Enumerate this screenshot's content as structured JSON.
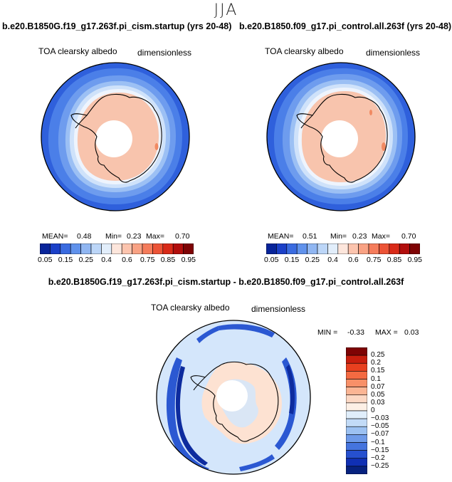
{
  "season": "JJA",
  "panels": [
    {
      "title": "b.e20.B1850G.f19_g17.263f.pi_cism.startup (yrs 20-48)",
      "variable": "TOA clearsky albedo",
      "units": "dimensionless",
      "stats": {
        "mean_label": "MEAN=",
        "mean": "0.48",
        "min_label": "Min=",
        "min": "0.23",
        "max_label": "Max=",
        "max": "0.70"
      }
    },
    {
      "title": "b.e20.B1850.f09_g17.pi_control.all.263f (yrs 20-48)",
      "variable": "TOA clearsky albedo",
      "units": "dimensionless",
      "stats": {
        "mean_label": "MEAN=",
        "mean": "0.51",
        "min_label": "Min=",
        "min": "0.23",
        "max_label": "Max=",
        "max": "0.70"
      }
    }
  ],
  "colorbar": {
    "colors": [
      "#08249a",
      "#1b40c8",
      "#3a6be0",
      "#6092ec",
      "#90b6f2",
      "#bcd6f8",
      "#e2eefb",
      "#fde6dc",
      "#fcc4ae",
      "#f9a284",
      "#f57c5b",
      "#ec5336",
      "#d92a18",
      "#b20e0c",
      "#7e0304"
    ],
    "labels": [
      "0.05",
      "0.15",
      "0.25",
      "0.4",
      "0.6",
      "0.75",
      "0.85",
      "0.95"
    ]
  },
  "diff": {
    "title": "b.e20.B1850G.f19_g17.263f.pi_cism.startup - b.e20.B1850.f09_g17.pi_control.all.263f",
    "variable": "TOA clearsky albedo",
    "units": "dimensionless",
    "min_label": "MIN =",
    "min": "-0.33",
    "max_label": "MAX =",
    "max": "0.03"
  },
  "diff_colorbar": {
    "colors": [
      "#7e0304",
      "#c81e0e",
      "#e8401f",
      "#f46a42",
      "#f89068",
      "#fbb594",
      "#fcd8c4",
      "#fdf0e6",
      "#e0eefb",
      "#c2dbf7",
      "#9cc1f2",
      "#6e9ae9",
      "#4574de",
      "#2650cf",
      "#1030b4",
      "#07227f"
    ],
    "labels": [
      "0.25",
      "0.2",
      "0.15",
      "0.1",
      "0.07",
      "0.05",
      "0.03",
      "0",
      "−0.03",
      "−0.05",
      "−0.07",
      "−0.1",
      "−0.15",
      "−0.2",
      "−0.25"
    ]
  },
  "map_colors": {
    "ring0": "#2f60dc",
    "ring1": "#4b7fe8",
    "ring2": "#6e9cee",
    "ring3": "#9cc0f4",
    "ring4": "#cfe2fa",
    "ring5": "#eef4fd",
    "land": "#f8c4ad",
    "pole": "#ffffff",
    "diff_bg": "#d4e6fb",
    "diff_pos": "#fde2d2",
    "diff_band1": "#2b58d2",
    "diff_band2": "#0d2b9e"
  }
}
